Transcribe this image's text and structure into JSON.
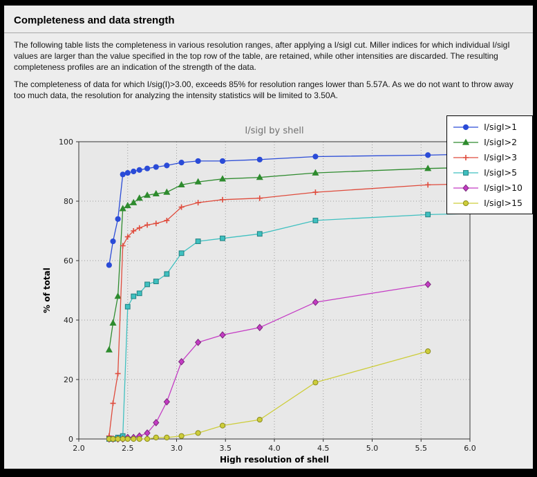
{
  "page": {
    "title": "Completeness and data strength",
    "paragraphs": [
      "The following table lists the completeness in various resolution ranges, after applying a I/sigI cut. Miller indices for which individual I/sigI values are larger than the value specified in the top row of the table, are retained, while other intensities are discarded. The resulting completeness profiles are an indication of the strength of the data.",
      "The completeness of data for which I/sig(I)>3.00, exceeds  85% for resolution ranges lower than 5.57A. As we do not want to throw away too much data, the resolution for analyzing the intensity statistics will be limited to 3.50A."
    ]
  },
  "chart_data": {
    "type": "line",
    "title": "I/sigI by shell",
    "xlabel": "High resolution of shell",
    "ylabel": "% of total",
    "xlim": [
      2.0,
      6.0
    ],
    "ylim": [
      0,
      100
    ],
    "xticks": [
      "2.0",
      "2.5",
      "3.0",
      "3.5",
      "4.0",
      "4.5",
      "5.0",
      "5.5",
      "6.0"
    ],
    "yticks": [
      "0",
      "20",
      "40",
      "60",
      "80",
      "100"
    ],
    "grid": "dotted",
    "legend_position": "top-right",
    "x": [
      2.31,
      2.35,
      2.4,
      2.45,
      2.5,
      2.56,
      2.62,
      2.7,
      2.79,
      2.9,
      3.05,
      3.22,
      3.47,
      3.85,
      4.42,
      5.57
    ],
    "series": [
      {
        "name": "I/sigI>1",
        "color": "#2a4bd7",
        "marker": "circle",
        "values": [
          58.5,
          66.5,
          74,
          89,
          89.5,
          90,
          90.5,
          91,
          91.5,
          92,
          93,
          93.5,
          93.5,
          94,
          95,
          95.5
        ],
        "tail": [
          5.97,
          95.8
        ]
      },
      {
        "name": "I/sigI>2",
        "color": "#2e8b2e",
        "marker": "triangle",
        "values": [
          30,
          39,
          48,
          77.5,
          78.5,
          79.5,
          81,
          82,
          82.5,
          83,
          85.5,
          86.5,
          87.5,
          88,
          89.5,
          91
        ],
        "tail": [
          5.97,
          91.3
        ]
      },
      {
        "name": "I/sigI>3",
        "color": "#df4b3c",
        "marker": "plus",
        "values": [
          1,
          12,
          22,
          65,
          68,
          70,
          71,
          72,
          72.5,
          73.5,
          78,
          79.5,
          80.5,
          81,
          83,
          85.5
        ],
        "tail": [
          5.97,
          85.8
        ]
      },
      {
        "name": "I/sigI>5",
        "color": "#3fc0c0",
        "edge": "#1f7f7f",
        "marker": "square",
        "values": [
          0,
          0,
          0.5,
          1,
          44.5,
          48,
          49,
          52,
          53,
          55.5,
          62.5,
          66.5,
          67.5,
          69,
          73.5,
          75.5
        ],
        "tail": [
          5.97,
          75.8
        ]
      },
      {
        "name": "I/sigI>10",
        "color": "#c43bc4",
        "edge": "#7a2a7a",
        "marker": "diamond",
        "values": [
          0,
          0,
          0,
          0,
          0.5,
          0.5,
          1,
          2,
          5.5,
          12.5,
          26,
          32.5,
          35,
          37.5,
          46,
          52
        ]
      },
      {
        "name": "I/sigI>15",
        "color": "#cdcd3a",
        "edge": "#8b8b1f",
        "marker": "circle",
        "values": [
          0,
          0,
          0,
          0,
          0,
          0,
          0,
          0,
          0.5,
          0.5,
          1,
          2,
          4.5,
          6.5,
          19,
          29.5
        ]
      }
    ]
  }
}
